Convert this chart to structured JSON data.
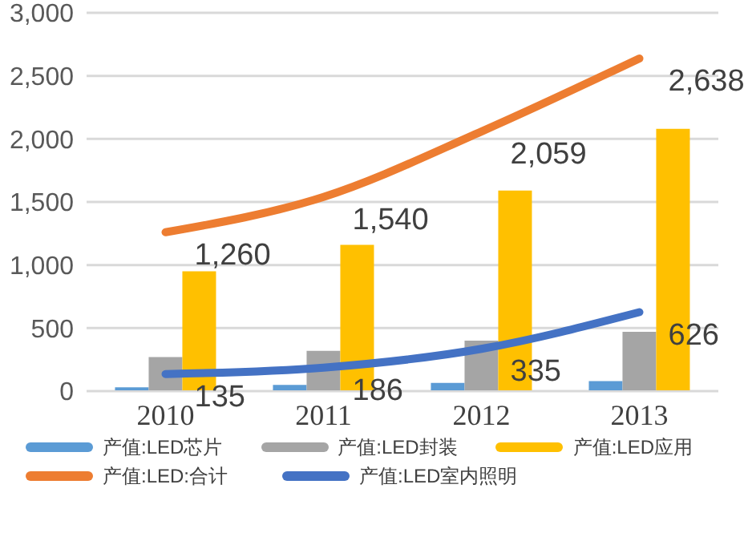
{
  "chart_data": {
    "type": "bar",
    "categories": [
      "2010",
      "2011",
      "2012",
      "2013"
    ],
    "series": [
      {
        "name": "产值:LED芯片",
        "color": "#5b9bd5",
        "values": [
          30,
          50,
          65,
          80
        ]
      },
      {
        "name": "产值:LED封装",
        "color": "#a5a5a5",
        "values": [
          270,
          320,
          400,
          470
        ]
      },
      {
        "name": "产值:LED应用",
        "color": "#ffc000",
        "values": [
          950,
          1160,
          1590,
          2080
        ]
      },
      {
        "name": "产值:LED:合计",
        "type": "line",
        "color": "#ed7d31",
        "values": [
          1260,
          1540,
          2059,
          2638
        ],
        "value_labels": [
          "1,260",
          "1,540",
          "2,059",
          "2,638"
        ]
      },
      {
        "name": "产值:LED室内照明",
        "type": "line",
        "color": "#4472c4",
        "values": [
          135,
          186,
          335,
          626
        ],
        "value_labels": [
          "135",
          "186",
          "335",
          "626"
        ]
      }
    ],
    "ylim": [
      0,
      3000
    ],
    "yticks": [
      {
        "value": 0,
        "label": "0"
      },
      {
        "value": 500,
        "label": "500"
      },
      {
        "value": 1000,
        "label": "1,000"
      },
      {
        "value": 1500,
        "label": "1,500"
      },
      {
        "value": 2000,
        "label": "2,000"
      },
      {
        "value": 2500,
        "label": "2,500"
      },
      {
        "value": 3000,
        "label": "3,000"
      }
    ],
    "grid": "y",
    "legend": "bottom"
  }
}
